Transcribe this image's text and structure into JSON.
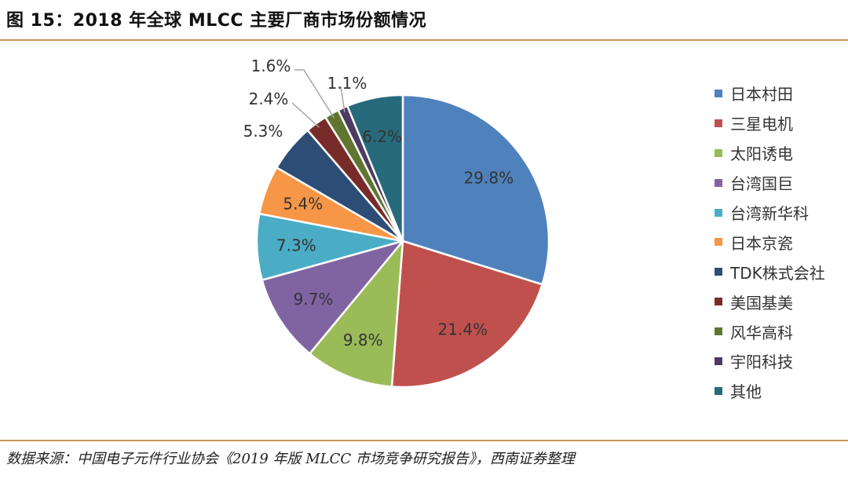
{
  "figure": {
    "title": "图 15：2018 年全球 MLCC 主要厂商市场份额情况",
    "source": "数据来源：中国电子元件行业协会《2019 年版 MLCC 市场竞争研究报告》，西南证券整理"
  },
  "chart_data": {
    "type": "pie",
    "title": "",
    "legend_position": "right",
    "slices": [
      {
        "label": "日本村田",
        "value": 29.8,
        "display": "29.8%",
        "color": "#4f81bd"
      },
      {
        "label": "三星电机",
        "value": 21.4,
        "display": "21.4%",
        "color": "#c0504d"
      },
      {
        "label": "太阳诱电",
        "value": 9.8,
        "display": "9.8%",
        "color": "#9bbb59"
      },
      {
        "label": "台湾国巨",
        "value": 9.7,
        "display": "9.7%",
        "color": "#8064a2"
      },
      {
        "label": "台湾新华科",
        "value": 7.3,
        "display": "7.3%",
        "color": "#4bacc6"
      },
      {
        "label": "日本京瓷",
        "value": 5.4,
        "display": "5.4%",
        "color": "#f79646"
      },
      {
        "label": "TDK株式会社",
        "value": 5.3,
        "display": "5.3%",
        "color": "#2c4d75"
      },
      {
        "label": "美国基美",
        "value": 2.4,
        "display": "2.4%",
        "color": "#772c2a"
      },
      {
        "label": "风华高科",
        "value": 1.6,
        "display": "1.6%",
        "color": "#5f7530"
      },
      {
        "label": "宇阳科技",
        "value": 1.1,
        "display": "1.1%",
        "color": "#4d3b62"
      },
      {
        "label": "其他",
        "value": 6.2,
        "display": "6.2%",
        "color": "#276a7c"
      }
    ]
  }
}
